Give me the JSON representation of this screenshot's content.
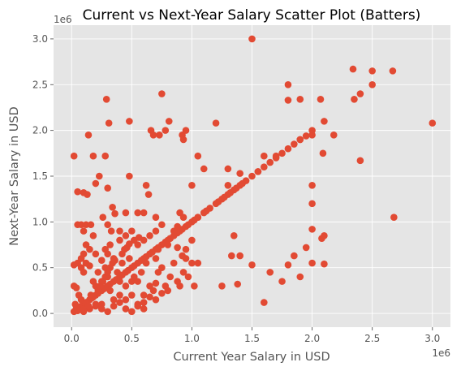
{
  "chart_data": {
    "type": "scatter",
    "title": "Current vs Next-Year Salary Scatter Plot (Batters)",
    "xlabel": "Current Year Salary in USD",
    "ylabel": "Next-Year Salary in USD",
    "x_offset_label": "1e6",
    "y_offset_label": "1e6",
    "xlim": [
      -0.15,
      3.15
    ],
    "ylim": [
      -0.15,
      3.15
    ],
    "xticks": [
      0.0,
      0.5,
      1.0,
      1.5,
      2.0,
      2.5,
      3.0
    ],
    "yticks": [
      0.0,
      0.5,
      1.0,
      1.5,
      2.0,
      2.5,
      3.0
    ],
    "xtick_labels": [
      "0.0",
      "0.5",
      "1.0",
      "1.5",
      "2.0",
      "2.5",
      "3.0"
    ],
    "ytick_labels": [
      "0.0",
      "0.5",
      "1.0",
      "1.5",
      "2.0",
      "2.5",
      "3.0"
    ],
    "grid": true,
    "style": "ggplot",
    "colors": {
      "point": "#E24A33",
      "background": "#E5E5E5",
      "grid": "#FFFFFF"
    },
    "points": [
      [
        0.02,
        1.72
      ],
      [
        0.05,
        1.33
      ],
      [
        0.1,
        1.32
      ],
      [
        0.13,
        1.3
      ],
      [
        0.14,
        1.95
      ],
      [
        0.18,
        1.72
      ],
      [
        0.23,
        1.5
      ],
      [
        0.28,
        1.72
      ],
      [
        0.29,
        2.34
      ],
      [
        0.31,
        2.08
      ],
      [
        0.3,
        1.37
      ],
      [
        0.34,
        1.16
      ],
      [
        0.36,
        1.09
      ],
      [
        0.26,
        1.05
      ],
      [
        0.2,
        1.42
      ],
      [
        0.48,
        2.1
      ],
      [
        0.48,
        1.5
      ],
      [
        0.62,
        1.4
      ],
      [
        0.64,
        1.3
      ],
      [
        0.66,
        2.0
      ],
      [
        0.68,
        1.95
      ],
      [
        0.73,
        1.95
      ],
      [
        0.75,
        2.4
      ],
      [
        0.78,
        2.0
      ],
      [
        0.81,
        2.1
      ],
      [
        0.92,
        1.95
      ],
      [
        0.95,
        2.0
      ],
      [
        0.93,
        1.9
      ],
      [
        1.05,
        1.72
      ],
      [
        1.1,
        1.58
      ],
      [
        1.2,
        2.08
      ],
      [
        1.3,
        1.58
      ],
      [
        1.4,
        1.53
      ],
      [
        1.5,
        3.0
      ],
      [
        1.55,
        1.55
      ],
      [
        1.6,
        1.72
      ],
      [
        1.7,
        1.72
      ],
      [
        1.8,
        2.5
      ],
      [
        1.8,
        2.33
      ],
      [
        1.9,
        2.34
      ],
      [
        2.0,
        2.0
      ],
      [
        2.07,
        2.34
      ],
      [
        2.1,
        2.1
      ],
      [
        2.09,
        1.75
      ],
      [
        2.18,
        1.95
      ],
      [
        2.34,
        2.67
      ],
      [
        2.35,
        2.34
      ],
      [
        2.4,
        2.4
      ],
      [
        2.5,
        2.65
      ],
      [
        2.5,
        2.5
      ],
      [
        2.67,
        2.65
      ],
      [
        2.4,
        1.67
      ],
      [
        3.0,
        2.08
      ],
      [
        2.68,
        1.05
      ],
      [
        0.05,
        0.97
      ],
      [
        0.08,
        0.97
      ],
      [
        0.1,
        0.9
      ],
      [
        0.12,
        0.97
      ],
      [
        0.16,
        0.97
      ],
      [
        0.3,
        0.97
      ],
      [
        0.33,
        0.9
      ],
      [
        0.4,
        0.9
      ],
      [
        0.45,
        1.1
      ],
      [
        0.55,
        1.1
      ],
      [
        0.6,
        1.1
      ],
      [
        0.7,
        1.05
      ],
      [
        0.75,
        0.97
      ],
      [
        0.9,
        1.1
      ],
      [
        0.93,
        1.05
      ],
      [
        1.0,
        1.4
      ],
      [
        1.05,
        1.05
      ],
      [
        1.0,
        0.8
      ],
      [
        0.95,
        0.7
      ],
      [
        1.05,
        0.55
      ],
      [
        0.92,
        0.63
      ],
      [
        0.88,
        0.72
      ],
      [
        1.3,
        1.4
      ],
      [
        1.35,
        0.85
      ],
      [
        1.33,
        0.63
      ],
      [
        1.4,
        0.63
      ],
      [
        1.38,
        0.32
      ],
      [
        1.25,
        0.3
      ],
      [
        1.5,
        0.53
      ],
      [
        1.6,
        0.12
      ],
      [
        1.65,
        0.45
      ],
      [
        1.75,
        0.35
      ],
      [
        1.8,
        0.53
      ],
      [
        1.85,
        0.63
      ],
      [
        1.9,
        0.4
      ],
      [
        1.95,
        0.72
      ],
      [
        2.0,
        0.92
      ],
      [
        2.0,
        0.55
      ],
      [
        2.08,
        0.82
      ],
      [
        2.1,
        0.85
      ],
      [
        2.1,
        0.54
      ],
      [
        2.0,
        1.4
      ],
      [
        2.0,
        1.2
      ],
      [
        1.9,
        1.9
      ],
      [
        1.95,
        1.94
      ],
      [
        2.0,
        1.95
      ],
      [
        0.05,
        0.05
      ],
      [
        0.1,
        0.1
      ],
      [
        0.15,
        0.15
      ],
      [
        0.2,
        0.2
      ],
      [
        0.25,
        0.25
      ],
      [
        0.3,
        0.3
      ],
      [
        0.35,
        0.35
      ],
      [
        0.4,
        0.4
      ],
      [
        0.45,
        0.45
      ],
      [
        0.5,
        0.5
      ],
      [
        0.55,
        0.55
      ],
      [
        0.6,
        0.6
      ],
      [
        0.65,
        0.65
      ],
      [
        0.7,
        0.7
      ],
      [
        0.75,
        0.75
      ],
      [
        0.8,
        0.8
      ],
      [
        0.85,
        0.85
      ],
      [
        0.9,
        0.9
      ],
      [
        0.95,
        0.95
      ],
      [
        1.0,
        1.0
      ],
      [
        1.05,
        1.05
      ],
      [
        1.1,
        1.1
      ],
      [
        1.15,
        1.15
      ],
      [
        1.2,
        1.2
      ],
      [
        1.25,
        1.25
      ],
      [
        1.3,
        1.3
      ],
      [
        1.35,
        1.35
      ],
      [
        1.4,
        1.4
      ],
      [
        1.45,
        1.45
      ],
      [
        1.5,
        1.5
      ],
      [
        1.55,
        1.55
      ],
      [
        1.6,
        1.6
      ],
      [
        1.65,
        1.65
      ],
      [
        1.7,
        1.7
      ],
      [
        1.75,
        1.75
      ],
      [
        1.8,
        1.8
      ],
      [
        1.85,
        1.85
      ],
      [
        1.9,
        1.9
      ],
      [
        0.52,
        0.52
      ],
      [
        0.58,
        0.58
      ],
      [
        0.62,
        0.62
      ],
      [
        0.67,
        0.67
      ],
      [
        0.72,
        0.72
      ],
      [
        0.78,
        0.78
      ],
      [
        0.82,
        0.82
      ],
      [
        0.88,
        0.88
      ],
      [
        0.92,
        0.92
      ],
      [
        0.97,
        0.97
      ],
      [
        1.02,
        1.02
      ],
      [
        0.42,
        0.42
      ],
      [
        0.47,
        0.47
      ],
      [
        0.37,
        0.37
      ],
      [
        0.32,
        0.32
      ],
      [
        0.27,
        0.27
      ],
      [
        0.22,
        0.22
      ],
      [
        0.17,
        0.17
      ],
      [
        0.12,
        0.12
      ],
      [
        0.07,
        0.07
      ],
      [
        1.12,
        1.12
      ],
      [
        1.22,
        1.22
      ],
      [
        1.27,
        1.27
      ],
      [
        1.32,
        1.32
      ],
      [
        1.37,
        1.37
      ],
      [
        1.42,
        1.42
      ],
      [
        0.02,
        0.53
      ],
      [
        0.05,
        0.55
      ],
      [
        0.08,
        0.5
      ],
      [
        0.1,
        0.45
      ],
      [
        0.12,
        0.55
      ],
      [
        0.15,
        0.52
      ],
      [
        0.02,
        0.3
      ],
      [
        0.04,
        0.28
      ],
      [
        0.06,
        0.2
      ],
      [
        0.08,
        0.15
      ],
      [
        0.03,
        0.1
      ],
      [
        0.05,
        0.03
      ],
      [
        0.1,
        0.02
      ],
      [
        0.15,
        0.05
      ],
      [
        0.2,
        0.08
      ],
      [
        0.25,
        0.1
      ],
      [
        0.2,
        0.3
      ],
      [
        0.25,
        0.35
      ],
      [
        0.3,
        0.4
      ],
      [
        0.22,
        0.45
      ],
      [
        0.18,
        0.35
      ],
      [
        0.28,
        0.28
      ],
      [
        0.32,
        0.25
      ],
      [
        0.35,
        0.15
      ],
      [
        0.4,
        0.2
      ],
      [
        0.45,
        0.15
      ],
      [
        0.5,
        0.2
      ],
      [
        0.55,
        0.1
      ],
      [
        0.6,
        0.05
      ],
      [
        0.5,
        0.35
      ],
      [
        0.45,
        0.3
      ],
      [
        0.4,
        0.35
      ],
      [
        0.38,
        0.45
      ],
      [
        0.42,
        0.55
      ],
      [
        0.48,
        0.6
      ],
      [
        0.55,
        0.35
      ],
      [
        0.6,
        0.2
      ],
      [
        0.65,
        0.3
      ],
      [
        0.68,
        0.25
      ],
      [
        0.7,
        0.33
      ],
      [
        0.72,
        0.45
      ],
      [
        0.75,
        0.5
      ],
      [
        0.78,
        0.3
      ],
      [
        0.8,
        0.25
      ],
      [
        0.82,
        0.4
      ],
      [
        0.85,
        0.55
      ],
      [
        0.88,
        0.35
      ],
      [
        0.9,
        0.3
      ],
      [
        0.93,
        0.45
      ],
      [
        0.95,
        0.6
      ],
      [
        0.97,
        0.4
      ],
      [
        1.0,
        0.55
      ],
      [
        1.02,
        0.3
      ],
      [
        0.65,
        0.65
      ],
      [
        0.7,
        0.6
      ],
      [
        0.62,
        0.55
      ],
      [
        0.58,
        0.45
      ],
      [
        0.52,
        0.4
      ],
      [
        0.35,
        0.6
      ],
      [
        0.3,
        0.65
      ],
      [
        0.28,
        0.7
      ],
      [
        0.32,
        0.75
      ],
      [
        0.4,
        0.8
      ],
      [
        0.45,
        0.85
      ],
      [
        0.5,
        0.9
      ],
      [
        0.55,
        0.75
      ],
      [
        0.6,
        0.8
      ],
      [
        0.65,
        0.85
      ],
      [
        0.7,
        0.9
      ],
      [
        0.72,
        0.7
      ],
      [
        0.8,
        0.75
      ],
      [
        0.85,
        0.9
      ],
      [
        0.88,
        0.95
      ],
      [
        0.18,
        0.85
      ],
      [
        0.12,
        0.75
      ],
      [
        0.1,
        0.65
      ],
      [
        0.08,
        0.6
      ],
      [
        0.15,
        0.7
      ],
      [
        0.2,
        0.65
      ],
      [
        0.25,
        0.58
      ],
      [
        0.28,
        0.5
      ],
      [
        0.2,
        0.1
      ],
      [
        0.25,
        0.05
      ],
      [
        0.3,
        0.02
      ],
      [
        0.35,
        0.08
      ],
      [
        0.4,
        0.12
      ],
      [
        0.45,
        0.05
      ],
      [
        0.5,
        0.02
      ],
      [
        0.55,
        0.08
      ],
      [
        0.6,
        0.12
      ],
      [
        0.65,
        0.18
      ],
      [
        0.7,
        0.15
      ],
      [
        0.75,
        0.22
      ],
      [
        0.02,
        0.02
      ],
      [
        0.04,
        0.06
      ],
      [
        0.06,
        0.04
      ],
      [
        0.08,
        0.08
      ],
      [
        0.1,
        0.05
      ],
      [
        0.12,
        0.12
      ],
      [
        0.14,
        0.08
      ],
      [
        0.16,
        0.2
      ],
      [
        0.18,
        0.18
      ],
      [
        0.22,
        0.25
      ],
      [
        0.24,
        0.3
      ],
      [
        0.26,
        0.35
      ],
      [
        0.28,
        0.4
      ],
      [
        0.3,
        0.45
      ],
      [
        0.32,
        0.5
      ],
      [
        0.34,
        0.55
      ],
      [
        0.36,
        0.58
      ],
      [
        0.42,
        0.65
      ],
      [
        0.44,
        0.7
      ],
      [
        0.46,
        0.72
      ],
      [
        0.48,
        0.76
      ],
      [
        0.52,
        0.8
      ],
      [
        0.56,
        0.83
      ]
    ]
  }
}
